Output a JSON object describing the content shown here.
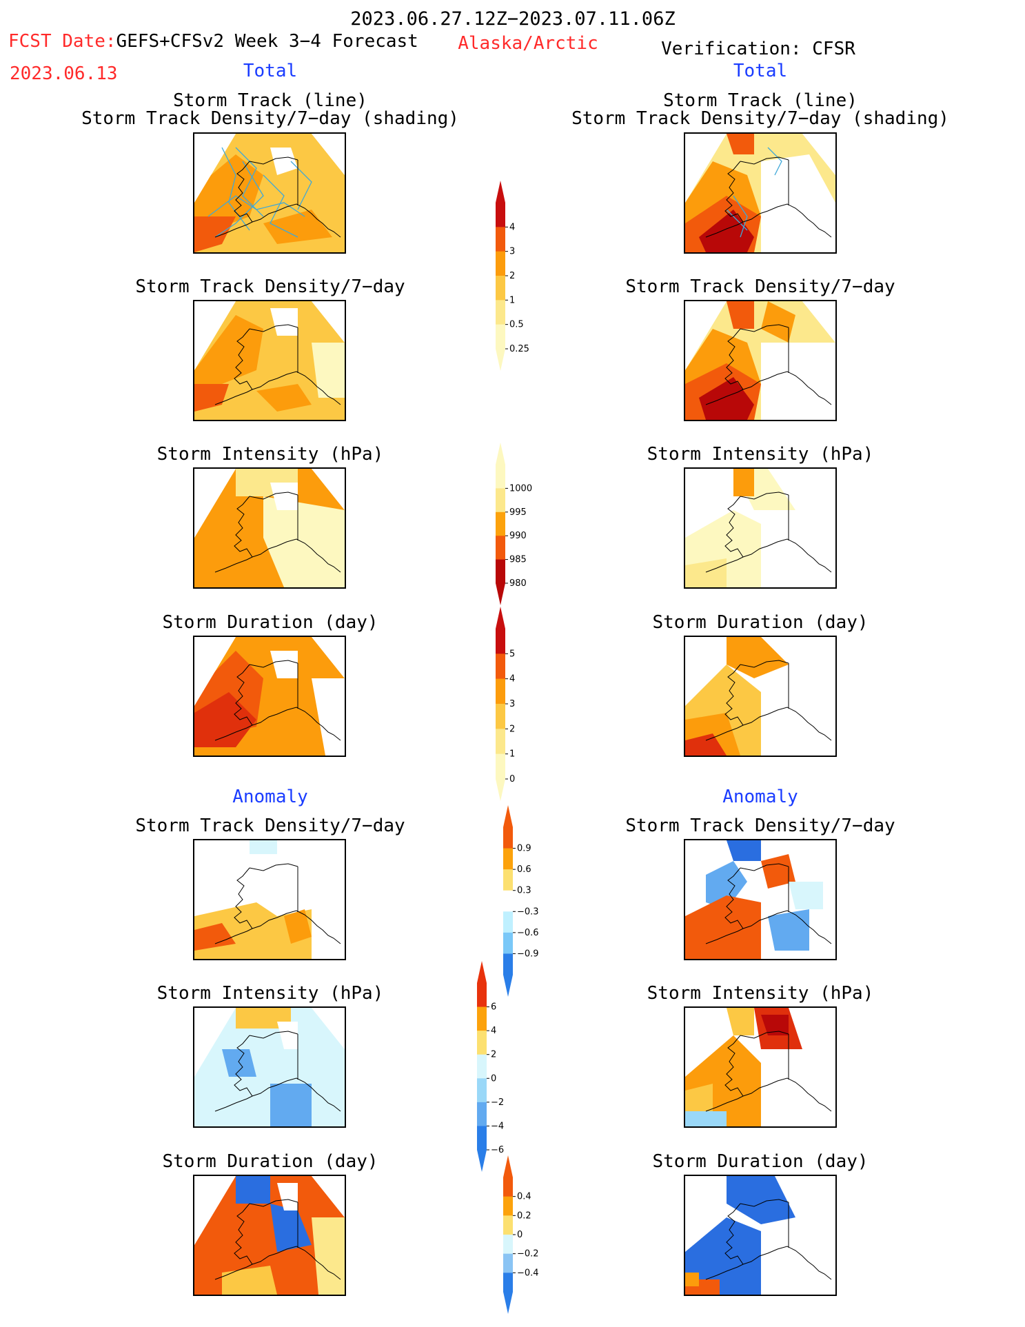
{
  "header": {
    "date_range": "2023.06.27.12Z−2023.07.11.06Z",
    "fcst_prefix": "FCST Date:",
    "fcst_model": "GEFS+CFSv2 Week 3−4 Forecast",
    "fcst_date": "2023.06.13",
    "region": "Alaska/Arctic",
    "verification": "Verification: CFSR"
  },
  "sections": {
    "total_label": "Total",
    "anomaly_label": "Anomaly"
  },
  "titles": {
    "storm_track_line": "Storm Track (line)",
    "storm_track_density_shading": "Storm Track Density/7−day (shading)",
    "storm_track_density": "Storm Track Density/7−day",
    "storm_intensity": "Storm Intensity (hPa)",
    "storm_duration": "Storm Duration (day)"
  },
  "colorbars": {
    "density_total": {
      "labels": [
        "4",
        "3",
        "2",
        "1",
        "0.5",
        "0.25"
      ],
      "colors": [
        "#c80e0e",
        "#f25a0c",
        "#fc9c0c",
        "#fcc844",
        "#fce88c",
        "#fdf8c0"
      ]
    },
    "intensity_total": {
      "labels": [
        "1000",
        "995",
        "990",
        "985",
        "980"
      ],
      "colors": [
        "#fdf8c0",
        "#fce88c",
        "#fca20c",
        "#f25a0c",
        "#b80808"
      ]
    },
    "duration_total": {
      "labels": [
        "5",
        "4",
        "3",
        "2",
        "1",
        "0"
      ],
      "colors": [
        "#c80e0e",
        "#f25a0c",
        "#fc9c0c",
        "#fcc844",
        "#fce88c",
        "#fdf8c0"
      ]
    },
    "density_anom": {
      "labels": [
        "0.9",
        "0.6",
        "0.3",
        "−0.3",
        "−0.6",
        "−0.9"
      ],
      "colors": [
        "#f25a0c",
        "#fca20c",
        "#fce070",
        "#ffffff",
        "#bff0ff",
        "#7ac8f8",
        "#2a7ee8"
      ]
    },
    "intensity_anom": {
      "labels": [
        "6",
        "4",
        "2",
        "0",
        "−2",
        "−4",
        "−6"
      ],
      "colors": [
        "#e8320c",
        "#fca20c",
        "#fce070",
        "#d8f6fc",
        "#9ad8f8",
        "#62aaf0",
        "#2a7ee8"
      ]
    },
    "duration_anom": {
      "labels": [
        "0.4",
        "0.2",
        "0",
        "−0.2",
        "−0.4"
      ],
      "colors": [
        "#f25a0c",
        "#fca20c",
        "#fce070",
        "#d8f6fc",
        "#8ac4f4",
        "#2a7ee8"
      ]
    }
  },
  "colors": {
    "forecast_label": "#ff2a2a",
    "section_label": "#1a3cff",
    "storm_track_line": "#3fa8d8"
  }
}
